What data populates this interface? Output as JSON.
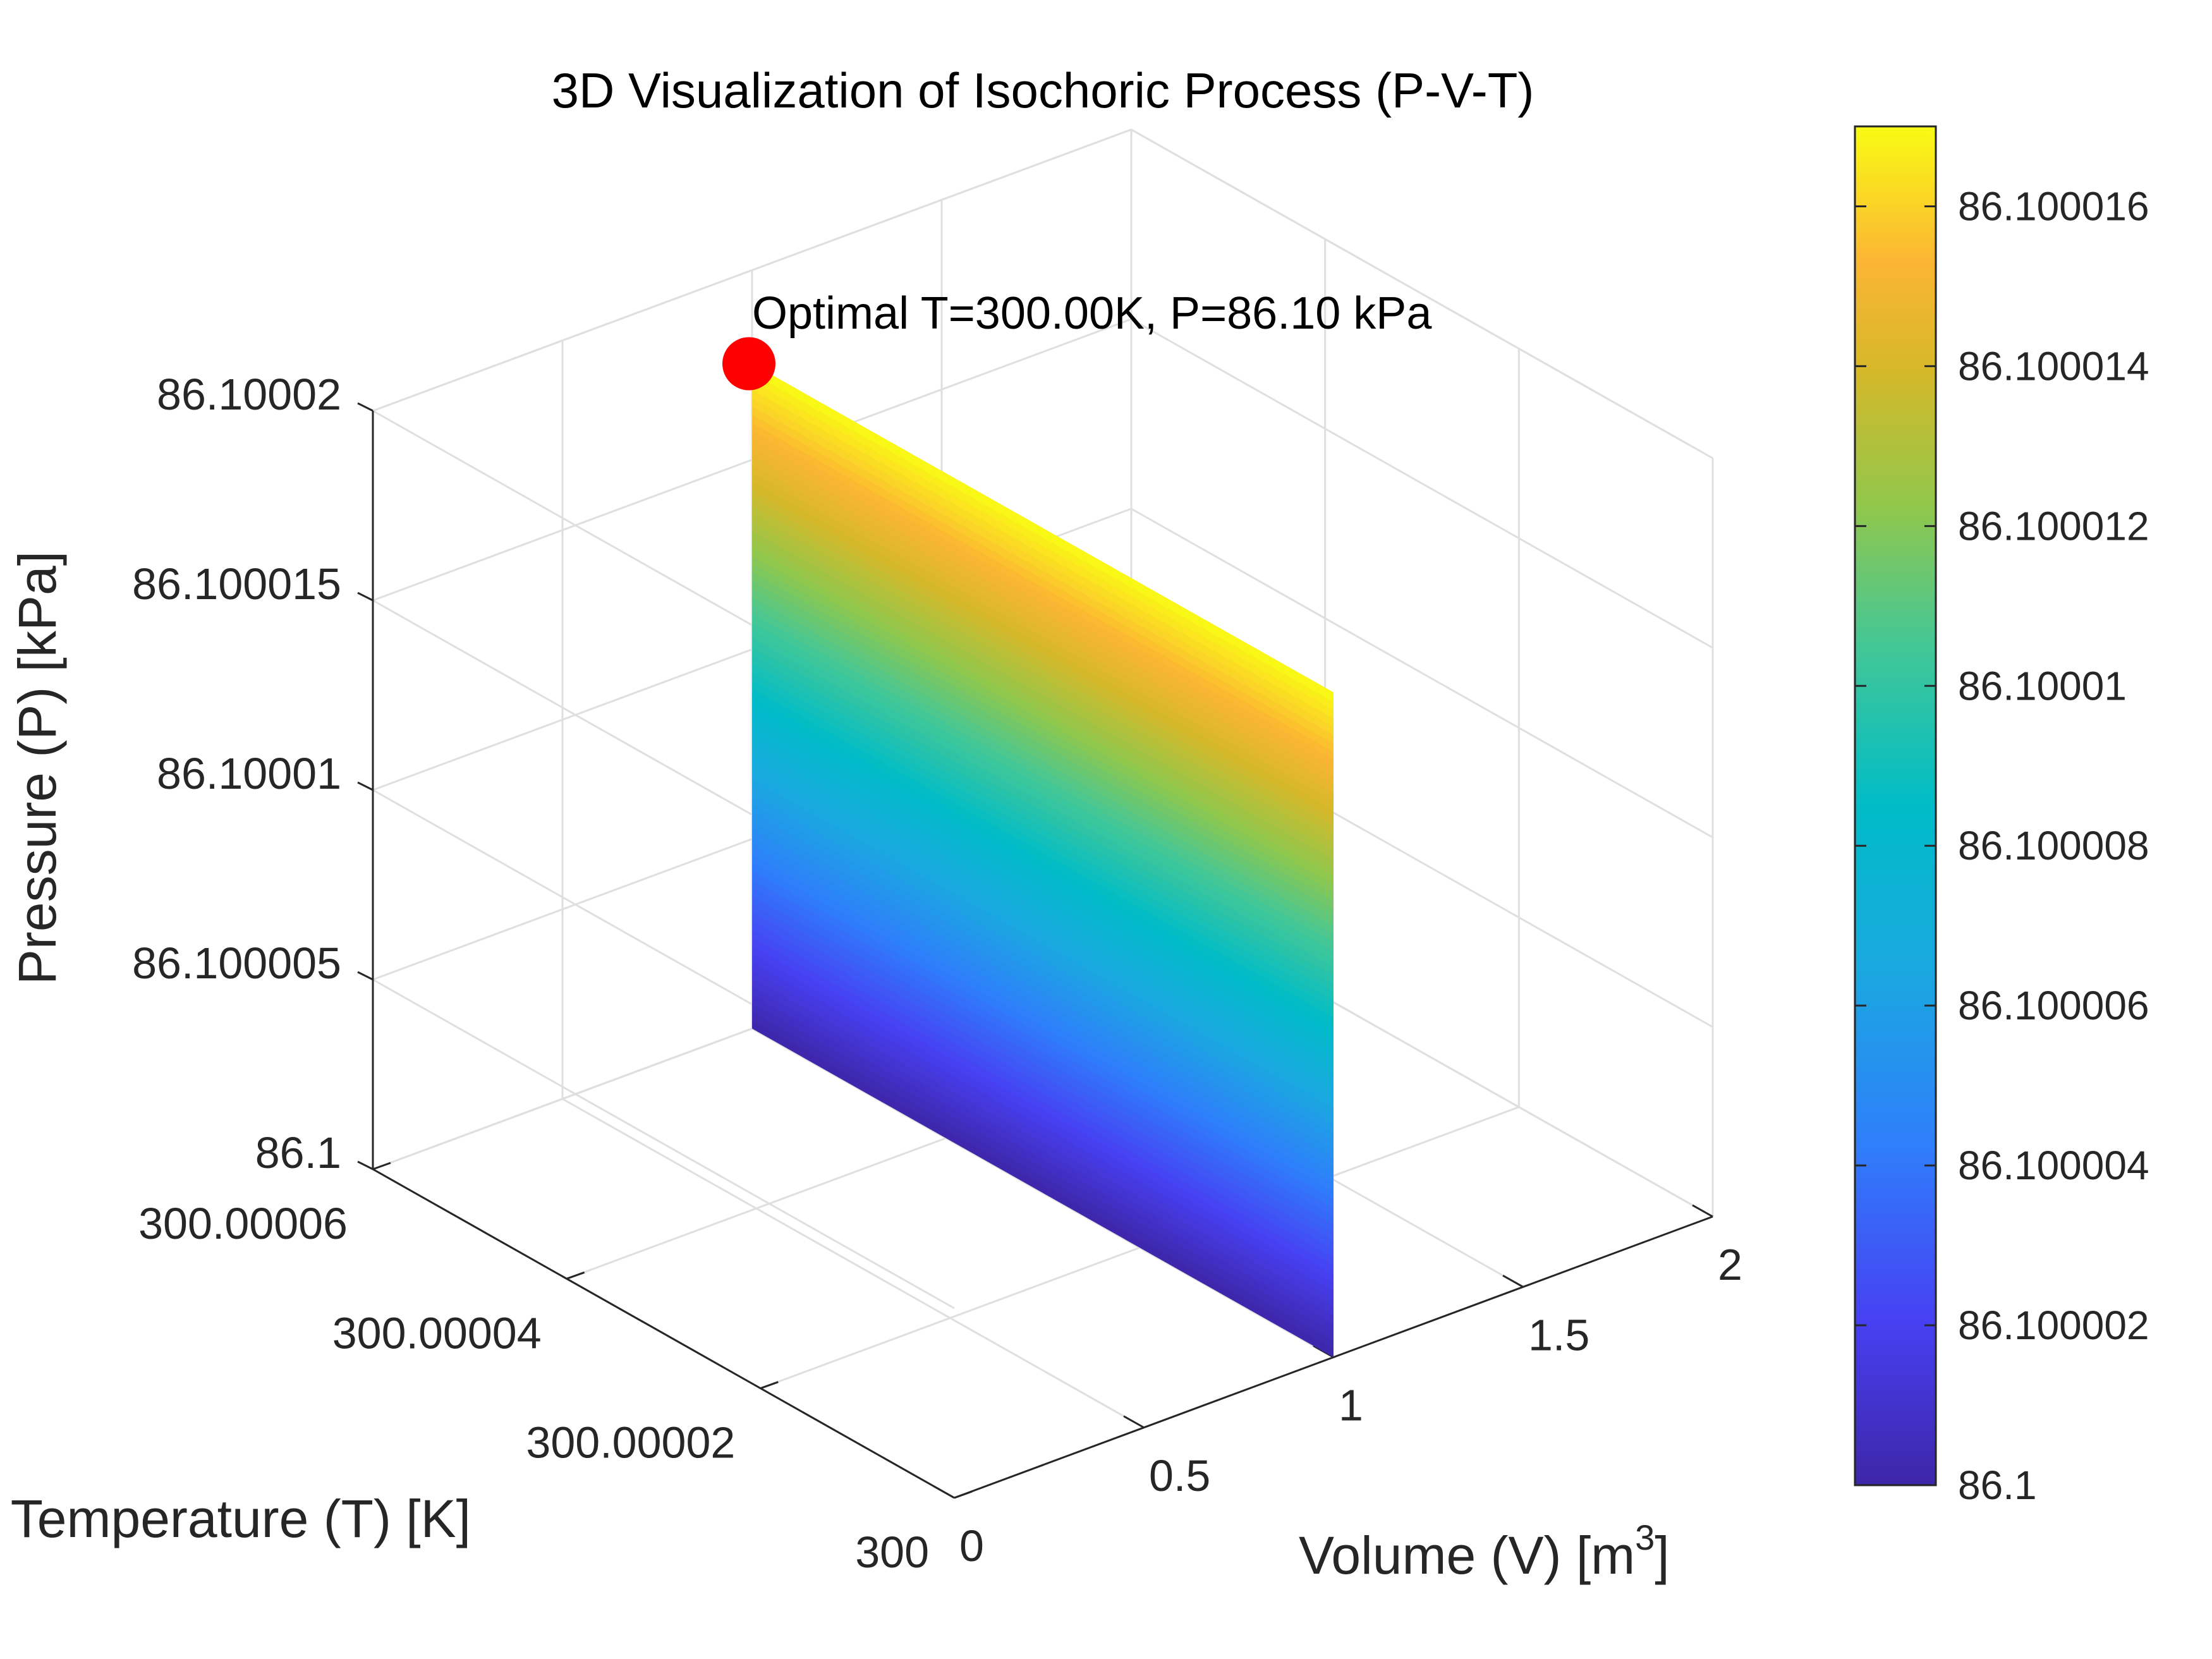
{
  "chart_data": {
    "type": "surface",
    "title": "3D Visualization of Isochoric Process (P-V-T)",
    "xlabel": "Volume (V) [m",
    "xlabel_sup": "3",
    "xlabel_end": "]",
    "ylabel": "Temperature (T) [K]",
    "zlabel": "Pressure (P) [kPa]",
    "xlim": [
      0,
      2
    ],
    "ylim": [
      300,
      300.00006
    ],
    "zlim": [
      86.1,
      86.10002
    ],
    "x_ticks": [
      "0",
      "0.5",
      "1",
      "1.5",
      "2"
    ],
    "x_tick_values": [
      0,
      0.5,
      1,
      1.5,
      2
    ],
    "y_ticks": [
      "300",
      "300.00002",
      "300.00004",
      "300.00006"
    ],
    "y_tick_values": [
      300,
      300.00002,
      300.00004,
      300.00006
    ],
    "z_ticks": [
      "86.1",
      "86.100005",
      "86.10001",
      "86.100015",
      "86.10002"
    ],
    "z_tick_values": [
      86.1,
      86.100005,
      86.10001,
      86.100015,
      86.10002
    ],
    "surface": {
      "volume": 1,
      "temperature_range": [
        300,
        300.00006
      ],
      "pressure_at_bottom": 86.1,
      "pressure_at_top": 86.1000175
    },
    "marker": {
      "volume": 1,
      "temperature": 300.00006,
      "pressure": 86.1000175,
      "color": "#ff0000",
      "label": "Optimal T=300.00K, P=86.10 kPa"
    },
    "colorbar": {
      "colormap": "parula",
      "range": [
        86.1,
        86.100017
      ],
      "ticks": [
        "86.1",
        "86.100002",
        "86.100004",
        "86.100006",
        "86.100008",
        "86.10001",
        "86.100012",
        "86.100014",
        "86.100016"
      ],
      "tick_values": [
        86.1,
        86.100002,
        86.100004,
        86.100006,
        86.100008,
        86.10001,
        86.100012,
        86.100014,
        86.100016
      ]
    },
    "grid": true
  }
}
